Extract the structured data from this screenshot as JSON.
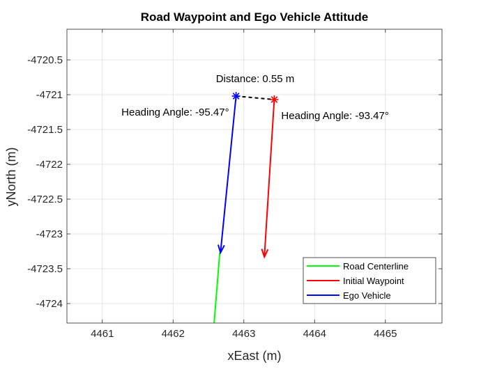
{
  "chart_data": {
    "type": "line",
    "title": "Road Waypoint and Ego Vehicle Attitude",
    "xlabel": "xEast (m)",
    "ylabel": "yNorth (m)",
    "xlim": [
      4460.5,
      4465.8
    ],
    "ylim": [
      -4724.28,
      -4720.06
    ],
    "xticks": [
      4461,
      4462,
      4463,
      4464,
      4465
    ],
    "yticks": [
      -4724,
      -4723.5,
      -4723,
      -4722.5,
      -4722,
      -4721.5,
      -4721,
      -4720.5
    ],
    "grid": true,
    "legend_position": "bottom-right",
    "series": [
      {
        "name": "Road Centerline",
        "color": "#00ff00",
        "x": [
          4462.58,
          4462.66
        ],
        "y": [
          -4724.28,
          -4723.27
        ]
      },
      {
        "name": "Initial Waypoint",
        "color": "#ff0000",
        "point": [
          4463.43,
          -4721.07
        ],
        "heading_deg": -93.47,
        "arrow_tip": [
          4463.29,
          -4723.33
        ]
      },
      {
        "name": "Ego Vehicle",
        "color": "#0000ff",
        "point": [
          4462.89,
          -4721.02
        ],
        "heading_deg": -95.47,
        "arrow_tip": [
          4462.67,
          -4723.27
        ]
      }
    ],
    "annotations": {
      "distance": "Distance: 0.55 m",
      "ego_heading": "Heading Angle: -95.47°",
      "waypoint_heading": "Heading Angle: -93.47°"
    }
  }
}
